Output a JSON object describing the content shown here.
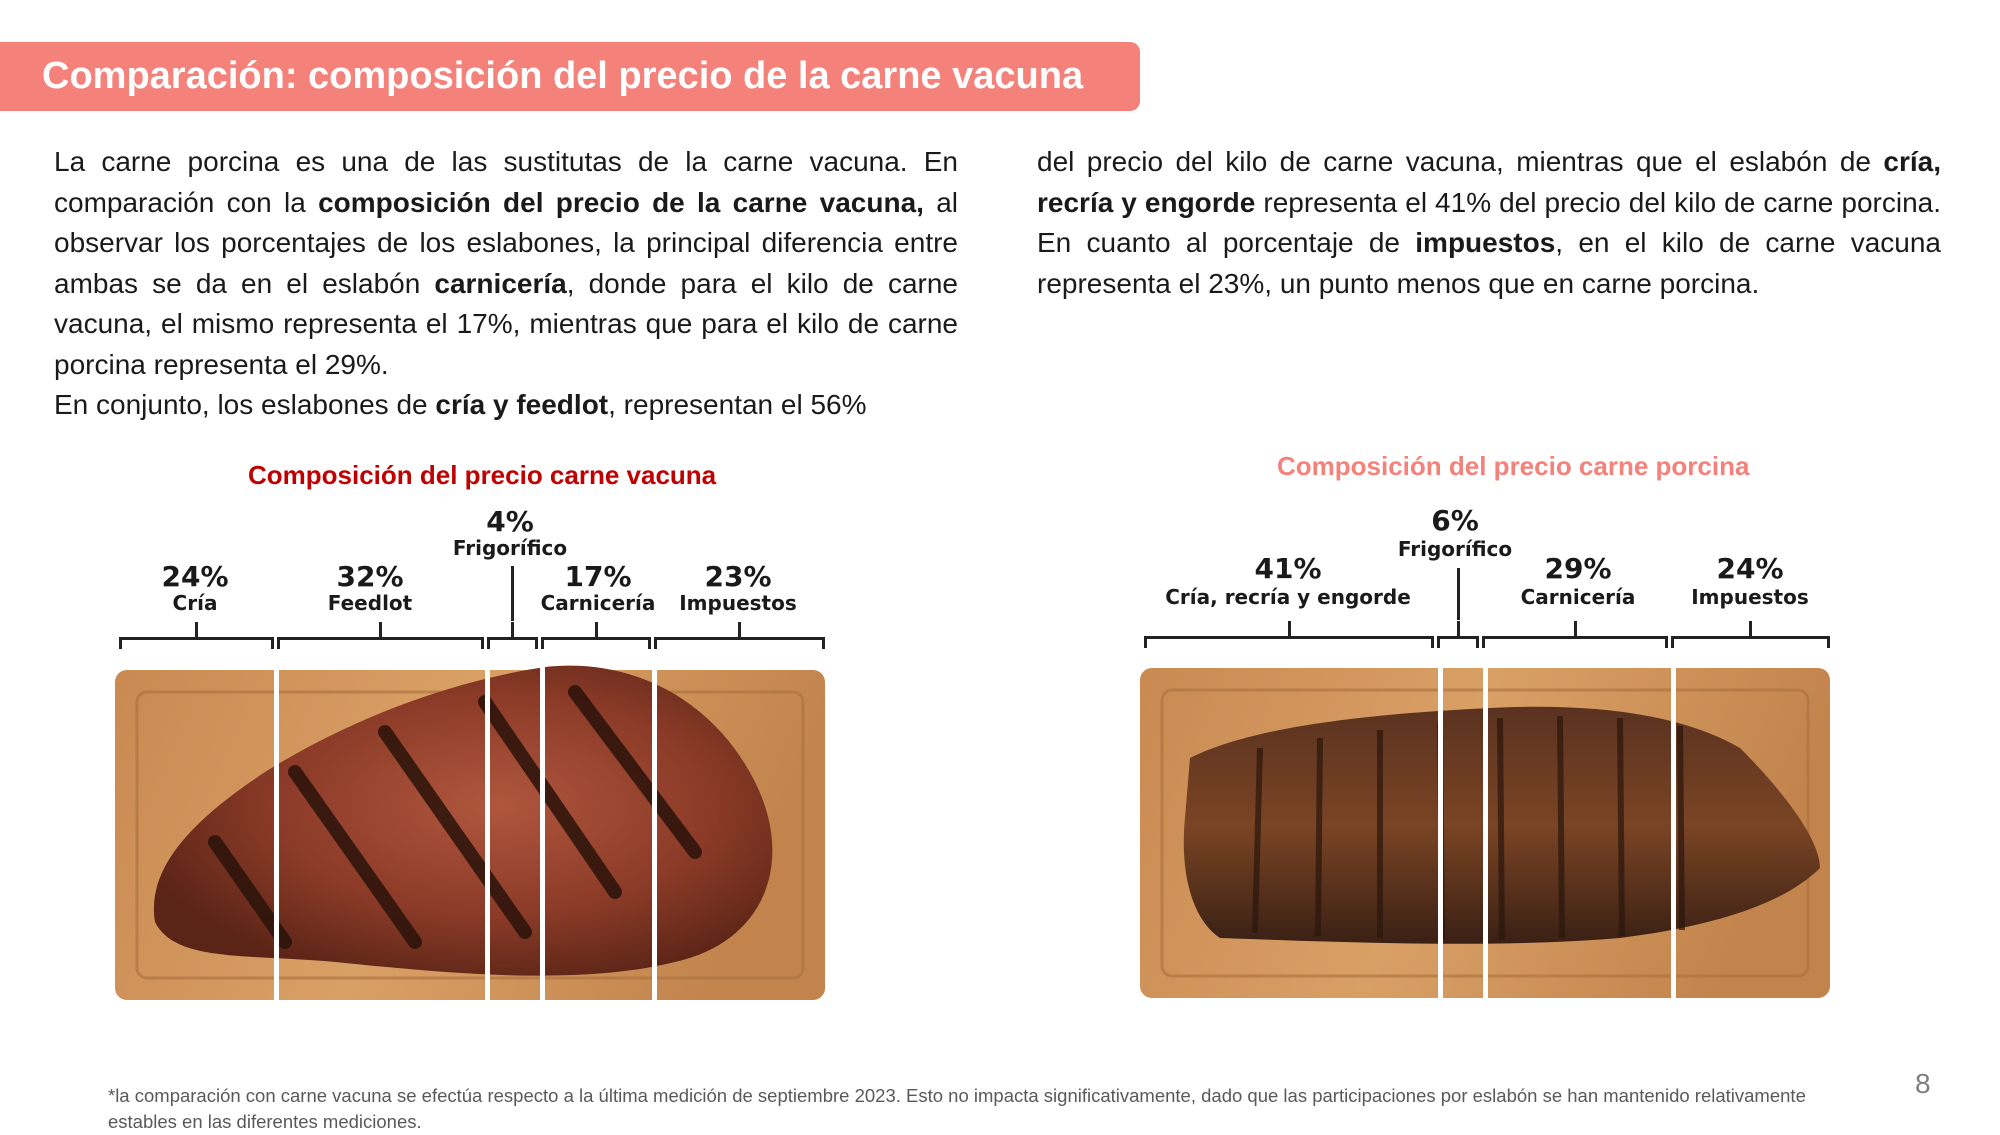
{
  "title": "Comparación: composición del precio de la carne vacuna",
  "text_left": [
    {
      "t": "La carne porcina es una de las sustitutas de la carne vacuna. En comparación con la ",
      "b": false
    },
    {
      "t": "composición del precio de la carne vacuna,",
      "b": true
    },
    {
      "t": " al observar los porcentajes de los eslabones, la principal diferencia entre ambas se da en el eslabón ",
      "b": false
    },
    {
      "t": "carnicería",
      "b": true
    },
    {
      "t": ", donde para el kilo de carne vacuna, el mismo representa el 17%, mientras que para el kilo de carne porcina representa el 29%.",
      "b": false
    },
    {
      "t": "\n",
      "b": false
    },
    {
      "t": "En conjunto, los eslabones de ",
      "b": false
    },
    {
      "t": "cría y feedlot",
      "b": true
    },
    {
      "t": ", representan el 56%",
      "b": false
    }
  ],
  "text_right": [
    {
      "t": "del precio del kilo de carne vacuna, mientras que el eslabón de ",
      "b": false
    },
    {
      "t": "cría, recría y engorde",
      "b": true
    },
    {
      "t": " representa el 41% del precio del kilo de carne porcina. En cuanto al porcentaje de ",
      "b": false
    },
    {
      "t": "impuestos",
      "b": true
    },
    {
      "t": ", en el kilo de carne vacuna representa el 23%, un punto menos que en carne porcina.",
      "b": false
    }
  ],
  "chart_beef": {
    "title": "Composición del precio carne vacuna",
    "segments": [
      {
        "pct": "24%",
        "label": "Cría",
        "value": 24
      },
      {
        "pct": "32%",
        "label": "Feedlot",
        "value": 32
      },
      {
        "pct": "4%",
        "label": "Frigorífico",
        "value": 4
      },
      {
        "pct": "17%",
        "label": "Carnicería",
        "value": 17
      },
      {
        "pct": "23%",
        "label": "Impuestos",
        "value": 23
      }
    ]
  },
  "chart_pork": {
    "title": "Composición del precio carne porcina",
    "segments": [
      {
        "pct": "41%",
        "label": "Cría, recría y engorde",
        "value": 41
      },
      {
        "pct": "6%",
        "label": "Frigorífico",
        "value": 6
      },
      {
        "pct": "29%",
        "label": "Carnicería",
        "value": 29
      },
      {
        "pct": "24%",
        "label": "Impuestos",
        "value": 24
      }
    ]
  },
  "colors": {
    "accent": "#f4827a",
    "beef_title": "#c00000",
    "pork_title": "#f4827a"
  },
  "footnote": "*la comparación con carne vacuna se efectúa respecto a la última medición de septiembre 2023. Esto no impacta significativamente, dado que las participaciones por eslabón se han mantenido relativamente estables en las diferentes mediciones.",
  "page_number": "8"
}
